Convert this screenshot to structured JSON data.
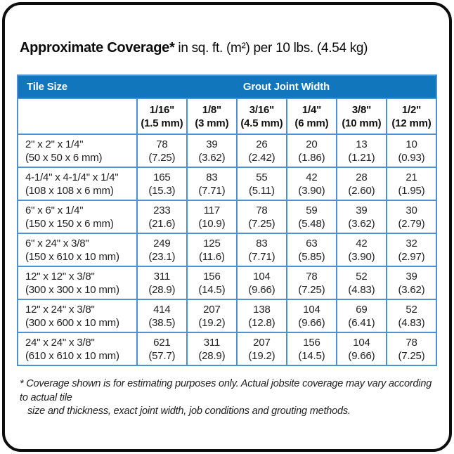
{
  "title": {
    "bold": "Approximate Coverage*",
    "rest": " in sq. ft. (m²) per 10 lbs. (4.54 kg)"
  },
  "colors": {
    "header_blue": "#1176BC",
    "grid_blue": "#4E90D2",
    "frame_black": "#0d0d0d"
  },
  "footnote": {
    "line1": "* Coverage shown is for estimating purposes only. Actual jobsite coverage may vary according to actual tile",
    "line2": "size and thickness, exact joint width, job conditions and grouting methods."
  },
  "chart_data": {
    "type": "table",
    "title": "Approximate Coverage* in sq. ft. (m²) per 10 lbs. (4.54 kg)",
    "row_header_label": "Tile Size",
    "column_group_label": "Grout Joint Width",
    "columns": [
      {
        "joint_width_in": "1/16\"",
        "joint_width_mm": "(1.5 mm)"
      },
      {
        "joint_width_in": "1/8\"",
        "joint_width_mm": "(3 mm)"
      },
      {
        "joint_width_in": "3/16\"",
        "joint_width_mm": "(4.5 mm)"
      },
      {
        "joint_width_in": "1/4\"",
        "joint_width_mm": "(6 mm)"
      },
      {
        "joint_width_in": "3/8\"",
        "joint_width_mm": "(10 mm)"
      },
      {
        "joint_width_in": "1/2\"",
        "joint_width_mm": "(12 mm)"
      }
    ],
    "rows": [
      {
        "tile_size": "2\" x 2\" x 1/4\"",
        "tile_size_mm": "(50 x 50 x 6 mm)",
        "coverage": [
          [
            "78",
            "(7.25)"
          ],
          [
            "39",
            "(3.62)"
          ],
          [
            "26",
            "(2.42)"
          ],
          [
            "20",
            "(1.86)"
          ],
          [
            "13",
            "(1.21)"
          ],
          [
            "10",
            "(0.93)"
          ]
        ]
      },
      {
        "tile_size": "4-1/4\" x 4-1/4\" x 1/4\"",
        "tile_size_mm": "(108 x 108 x 6 mm)",
        "coverage": [
          [
            "165",
            "(15.3)"
          ],
          [
            "83",
            "(7.71)"
          ],
          [
            "55",
            "(5.11)"
          ],
          [
            "42",
            "(3.90)"
          ],
          [
            "28",
            "(2.60)"
          ],
          [
            "21",
            "(1.95)"
          ]
        ]
      },
      {
        "tile_size": "6\" x 6\" x 1/4\"",
        "tile_size_mm": "(150 x 150 x 6 mm)",
        "coverage": [
          [
            "233",
            "(21.6)"
          ],
          [
            "117",
            "(10.9)"
          ],
          [
            "78",
            "(7.25)"
          ],
          [
            "59",
            "(5.48)"
          ],
          [
            "39",
            "(3.62)"
          ],
          [
            "30",
            "(2.79)"
          ]
        ]
      },
      {
        "tile_size": "6\" x 24\" x 3/8\"",
        "tile_size_mm": "(150 x 610 x 10 mm)",
        "coverage": [
          [
            "249",
            "(23.1)"
          ],
          [
            "125",
            "(11.6)"
          ],
          [
            "83",
            "(7.71)"
          ],
          [
            "63",
            "(5.85)"
          ],
          [
            "42",
            "(3.90)"
          ],
          [
            "32",
            "(2.97)"
          ]
        ]
      },
      {
        "tile_size": "12\" x 12\" x 3/8\"",
        "tile_size_mm": "(300 x 300 x 10 mm)",
        "coverage": [
          [
            "311",
            "(28.9)"
          ],
          [
            "156",
            "(14.5)"
          ],
          [
            "104",
            "(9.66)"
          ],
          [
            "78",
            "(7.25)"
          ],
          [
            "52",
            "(4.83)"
          ],
          [
            "39",
            "(3.62)"
          ]
        ]
      },
      {
        "tile_size": "12\" x 24\" x 3/8\"",
        "tile_size_mm": "(300 x 600 x 10 mm)",
        "coverage": [
          [
            "414",
            "(38.5)"
          ],
          [
            "207",
            "(19.2)"
          ],
          [
            "138",
            "(12.8)"
          ],
          [
            "104",
            "(9.66)"
          ],
          [
            "69",
            "(6.41)"
          ],
          [
            "52",
            "(4.83)"
          ]
        ]
      },
      {
        "tile_size": "24\" x 24\" x 3/8\"",
        "tile_size_mm": "(610 x 610 x 10 mm)",
        "coverage": [
          [
            "621",
            "(57.7)"
          ],
          [
            "311",
            "(28.9)"
          ],
          [
            "207",
            "(19.2)"
          ],
          [
            "156",
            "(14.5)"
          ],
          [
            "104",
            "(9.66)"
          ],
          [
            "78",
            "(7.25)"
          ]
        ]
      }
    ]
  }
}
